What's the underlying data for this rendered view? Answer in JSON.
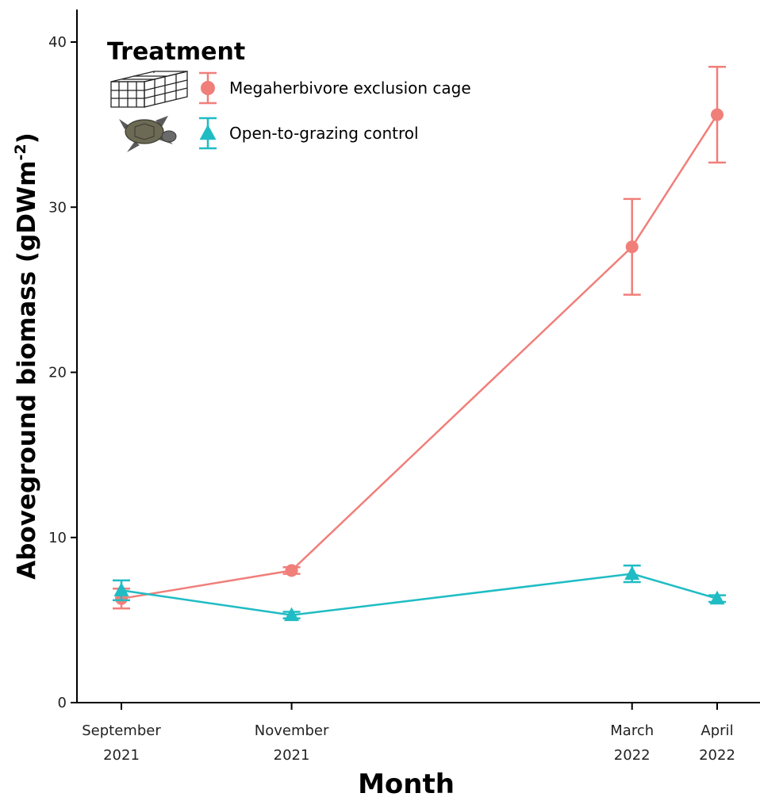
{
  "chart_data": {
    "type": "line",
    "title": "",
    "xlabel": "Month",
    "ylabel": "Aboveground biomass (gDWm",
    "ylabel_sup": "-2",
    "ylabel_close": ")",
    "ylim": [
      0,
      40
    ],
    "yticks": [
      0,
      10,
      20,
      30,
      40
    ],
    "x_dates": [
      "2021-09",
      "2021-11",
      "2022-03",
      "2022-04"
    ],
    "categories": [
      {
        "line1": "September",
        "line2": "2021"
      },
      {
        "line1": "November",
        "line2": "2021"
      },
      {
        "line1": "March",
        "line2": "2022"
      },
      {
        "line1": "April",
        "line2": "2022"
      }
    ],
    "legend": {
      "title": "Treatment",
      "position": "top-left"
    },
    "error_bars": true,
    "grid": false,
    "series": [
      {
        "name": "Megaherbivore exclusion cage",
        "color": "#f07f7a",
        "marker": "circle",
        "icon": "cage-icon",
        "values": [
          6.3,
          8.0,
          27.6,
          35.6
        ],
        "errors": [
          0.6,
          0.2,
          2.9,
          2.9
        ]
      },
      {
        "name": "Open-to-grazing control",
        "color": "#1fbcc4",
        "marker": "triangle",
        "icon": "turtle-icon",
        "values": [
          6.8,
          5.3,
          7.8,
          6.3
        ],
        "errors": [
          0.6,
          0.2,
          0.5,
          0.2
        ]
      }
    ]
  }
}
